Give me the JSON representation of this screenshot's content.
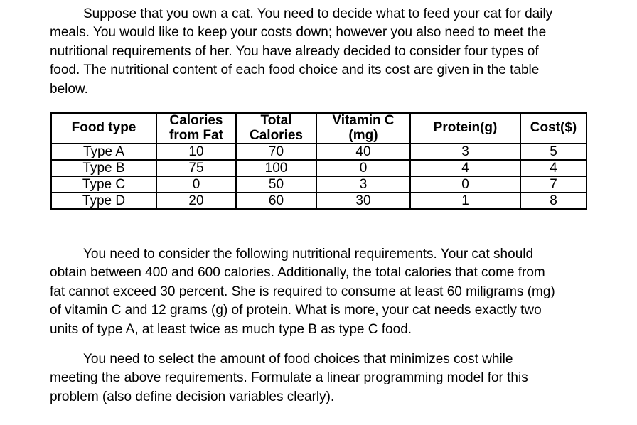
{
  "paragraphs": {
    "intro": [
      "Suppose that you own a cat. You need to decide what to feed your cat for daily",
      "meals. You would like to keep your costs down; however you also need to meet the",
      "nutritional requirements of her. You have already decided to consider four types of",
      "food. The nutritional content of each food choice and its cost are given in the table",
      "below."
    ],
    "requirements": [
      "You need to consider the following nutritional requirements. Your cat should",
      "obtain between 400 and 600 calories. Additionally, the total calories that come from",
      "fat cannot exceed 30 percent. She is required to consume at least 60 miligrams (mg)",
      "of vitamin C and 12 grams (g) of protein. What is more, your cat needs exactly two",
      "units of type A, at least twice as much type B as type C food."
    ],
    "task": [
      "You need to select the amount of food choices that minimizes cost while",
      "meeting the above requirements. Formulate a linear programming model for this",
      "problem (also define decision variables clearly)."
    ]
  },
  "table": {
    "headers": [
      "Food type",
      "Calories from Fat",
      "Total Calories",
      "Vitamin C (mg)",
      "Protein(g)",
      "Cost($)"
    ],
    "rows": [
      [
        "Type A",
        "10",
        "70",
        "40",
        "3",
        "5"
      ],
      [
        "Type B",
        "75",
        "100",
        "0",
        "4",
        "4"
      ],
      [
        "Type C",
        "0",
        "50",
        "3",
        "0",
        "7"
      ],
      [
        "Type D",
        "20",
        "60",
        "30",
        "1",
        "8"
      ]
    ]
  },
  "colors": {
    "text": "#000000",
    "background": "#ffffff",
    "table_border": "#000000"
  }
}
